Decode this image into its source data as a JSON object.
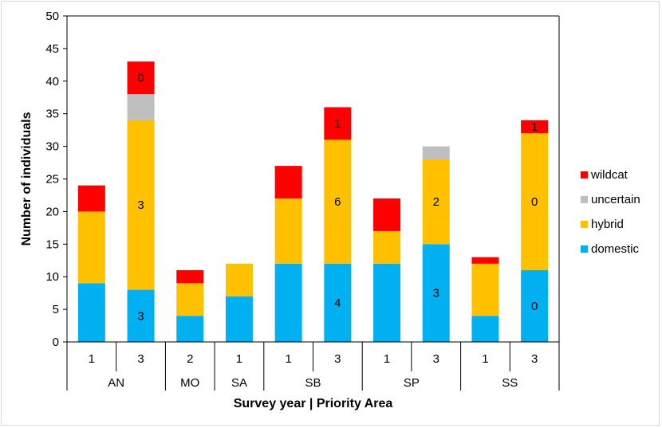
{
  "chart_data": {
    "type": "bar",
    "stacked": true,
    "title": "",
    "xlabel": "Survey year | Priority Area",
    "ylabel": "Number of individuals",
    "ylim": [
      0,
      50
    ],
    "yticks": [
      "0",
      "5",
      "10",
      "15",
      "20",
      "25",
      "30",
      "35",
      "40",
      "45",
      "50"
    ],
    "grid": false,
    "legend_position": "right",
    "categories": [
      "1",
      "3",
      "2",
      "1",
      "1",
      "3",
      "1",
      "3",
      "1",
      "3"
    ],
    "groups": [
      {
        "name": "AN",
        "count": 2
      },
      {
        "name": "MO",
        "count": 1
      },
      {
        "name": "SA",
        "count": 1
      },
      {
        "name": "SB",
        "count": 2
      },
      {
        "name": "SP",
        "count": 2
      },
      {
        "name": "SS",
        "count": 2
      }
    ],
    "series": [
      {
        "name": "domestic",
        "color": "#00b0f0",
        "values": [
          9,
          8,
          4,
          7,
          12,
          12,
          12,
          15,
          4,
          11
        ]
      },
      {
        "name": "hybrid",
        "color": "#ffc000",
        "values": [
          11,
          26,
          5,
          5,
          10,
          19,
          5,
          13,
          8,
          21
        ]
      },
      {
        "name": "uncertain",
        "color": "#bfbfbf",
        "values": [
          0,
          4,
          0,
          0,
          0,
          0,
          0,
          2,
          0,
          0
        ]
      },
      {
        "name": "wildcat",
        "color": "#ff0000",
        "values": [
          4,
          5,
          2,
          0,
          5,
          5,
          5,
          0,
          1,
          2
        ]
      }
    ],
    "data_labels": [
      {
        "bar": 1,
        "series": "domestic",
        "text": "3"
      },
      {
        "bar": 1,
        "series": "hybrid",
        "text": "3"
      },
      {
        "bar": 1,
        "series": "wildcat",
        "text": "0"
      },
      {
        "bar": 5,
        "series": "domestic",
        "text": "4"
      },
      {
        "bar": 5,
        "series": "hybrid",
        "text": "6"
      },
      {
        "bar": 5,
        "series": "wildcat",
        "text": "1"
      },
      {
        "bar": 7,
        "series": "domestic",
        "text": "3"
      },
      {
        "bar": 7,
        "series": "hybrid",
        "text": "2"
      },
      {
        "bar": 9,
        "series": "domestic",
        "text": "0"
      },
      {
        "bar": 9,
        "series": "hybrid",
        "text": "0"
      },
      {
        "bar": 9,
        "series": "wildcat",
        "text": "1"
      }
    ],
    "legend": [
      "wildcat",
      "uncertain",
      "hybrid",
      "domestic"
    ]
  }
}
